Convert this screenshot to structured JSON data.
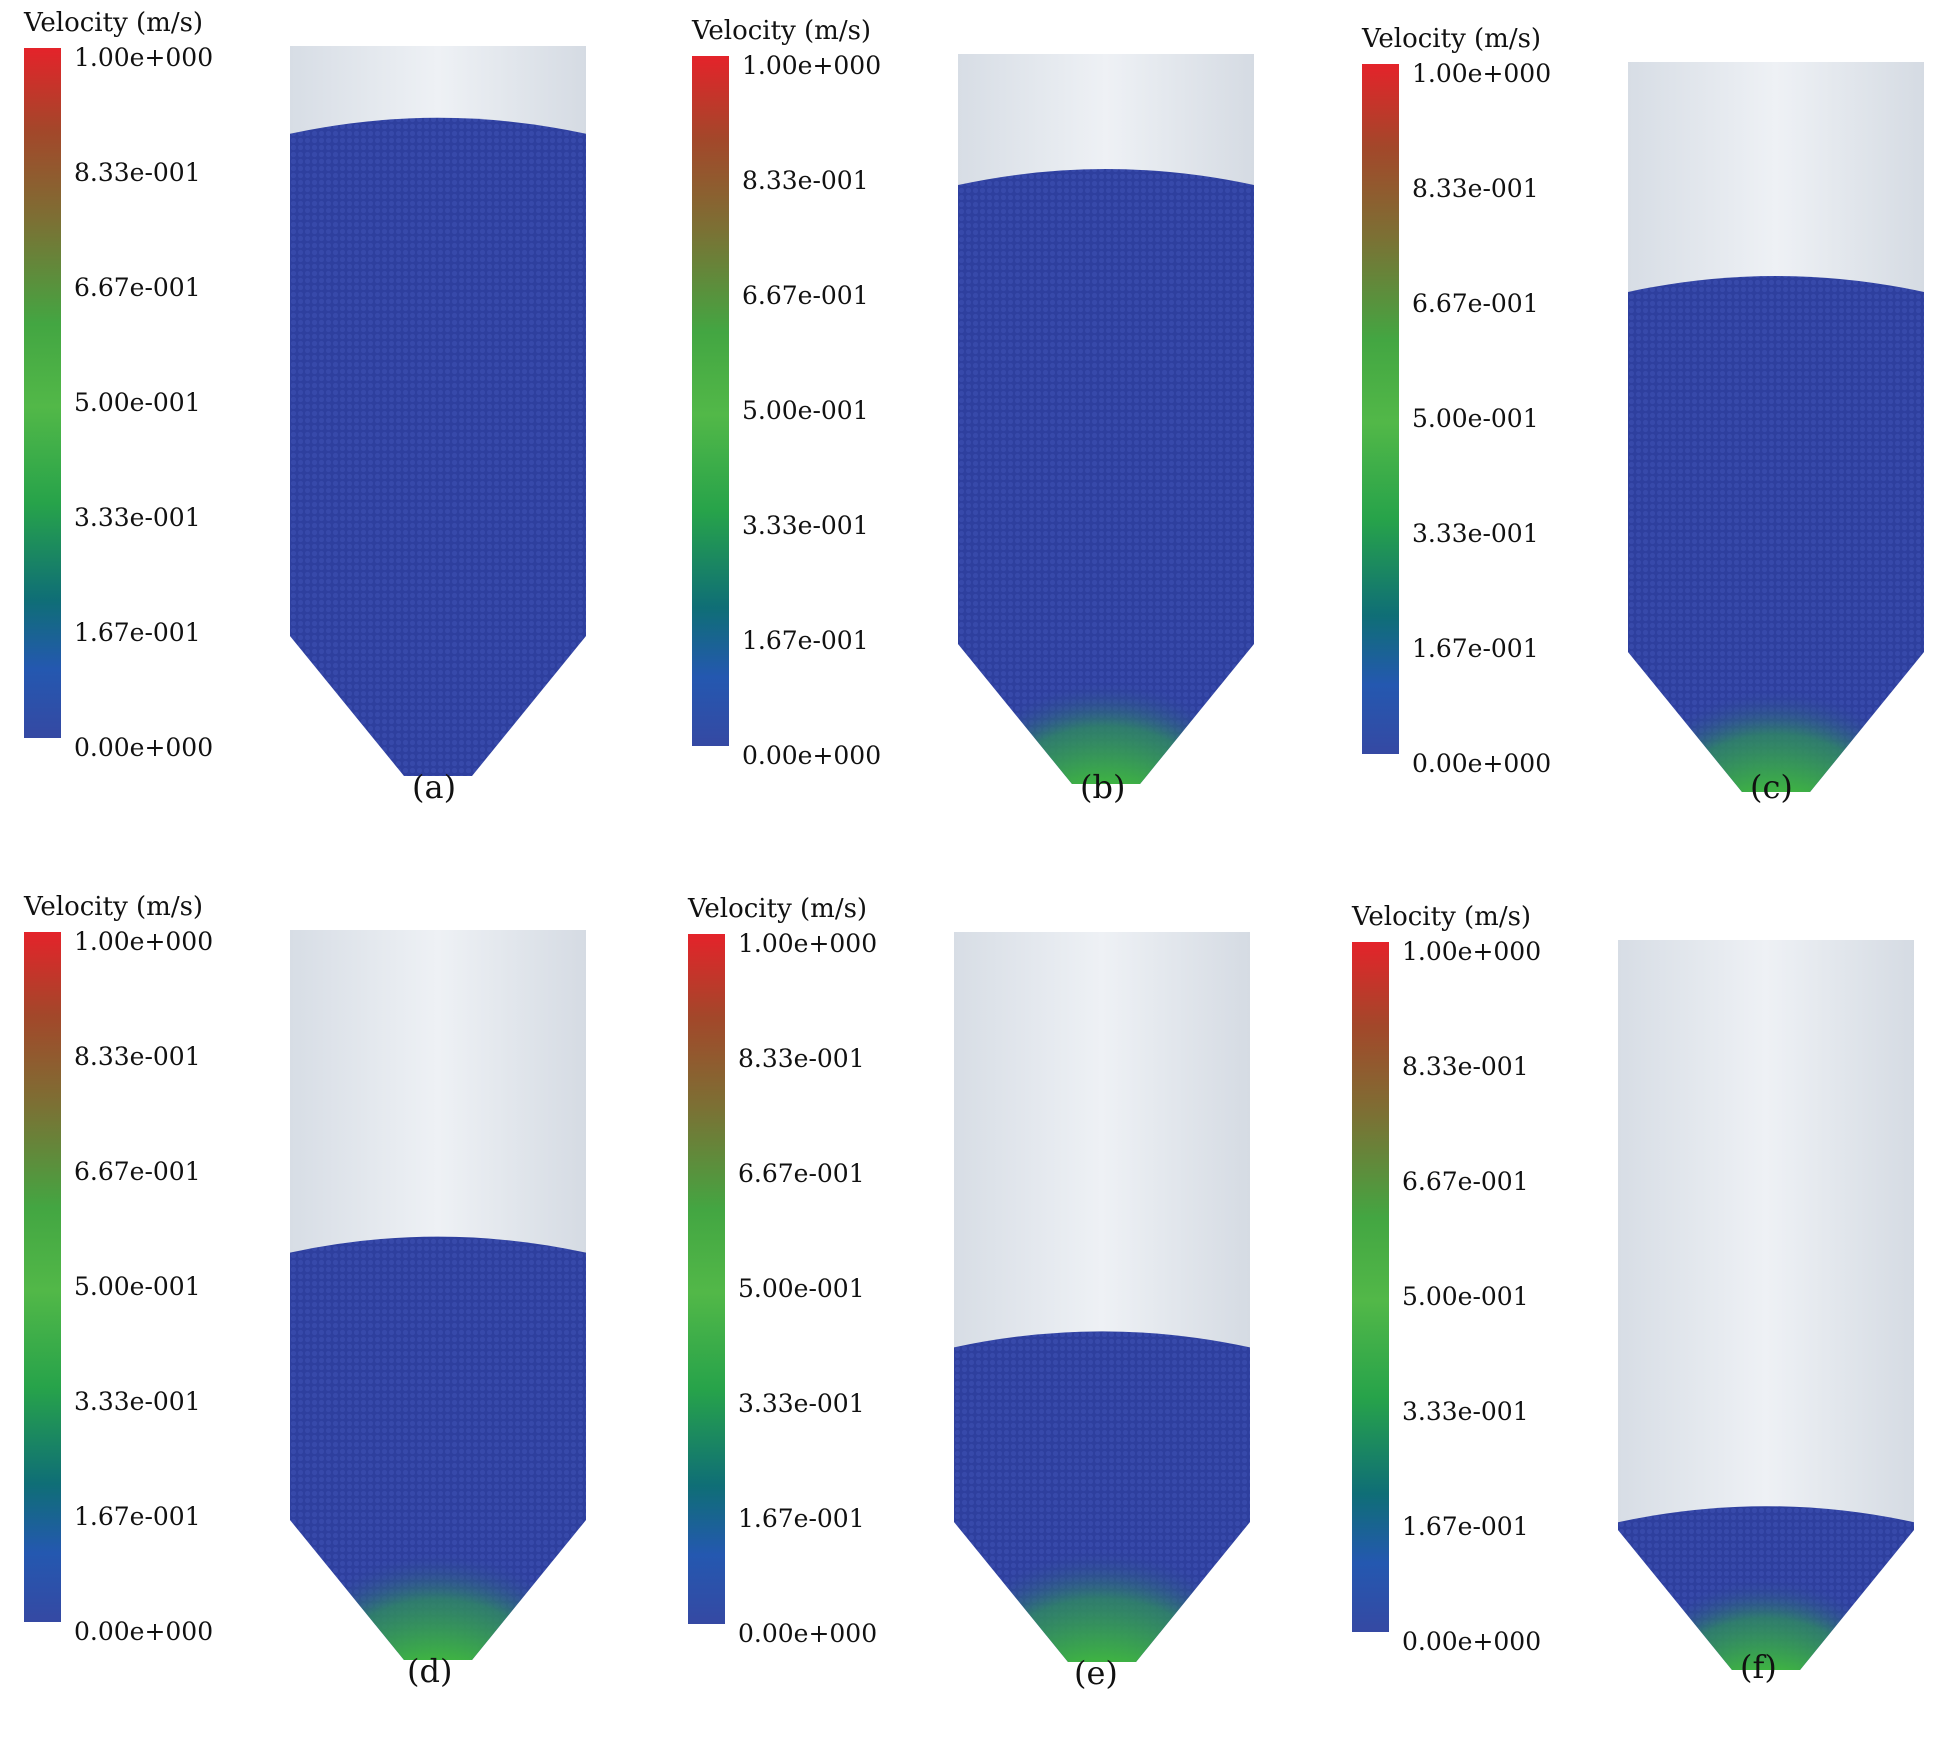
{
  "colorbar": {
    "title": "Velocity (m/s)",
    "ticks": [
      "1.00e+000",
      "8.33e-001",
      "6.67e-001",
      "5.00e-001",
      "3.33e-001",
      "1.67e-001",
      "0.00e+000"
    ]
  },
  "colors": {
    "particle_base": "#2e3f9e",
    "silo_shell": "#e3e8ee",
    "green": "#3fb541",
    "red": "#d3231f"
  },
  "panels": [
    {
      "label": "(a)",
      "fill_level": 0.9,
      "flow_intensity": 0.0
    },
    {
      "label": "(b)",
      "fill_level": 0.83,
      "flow_intensity": 0.85
    },
    {
      "label": "(c)",
      "fill_level": 0.67,
      "flow_intensity": 0.85
    },
    {
      "label": "(d)",
      "fill_level": 0.52,
      "flow_intensity": 0.9
    },
    {
      "label": "(e)",
      "fill_level": 0.37,
      "flow_intensity": 0.95
    },
    {
      "label": "(f)",
      "fill_level": 0.1,
      "flow_intensity": 0.75
    }
  ]
}
